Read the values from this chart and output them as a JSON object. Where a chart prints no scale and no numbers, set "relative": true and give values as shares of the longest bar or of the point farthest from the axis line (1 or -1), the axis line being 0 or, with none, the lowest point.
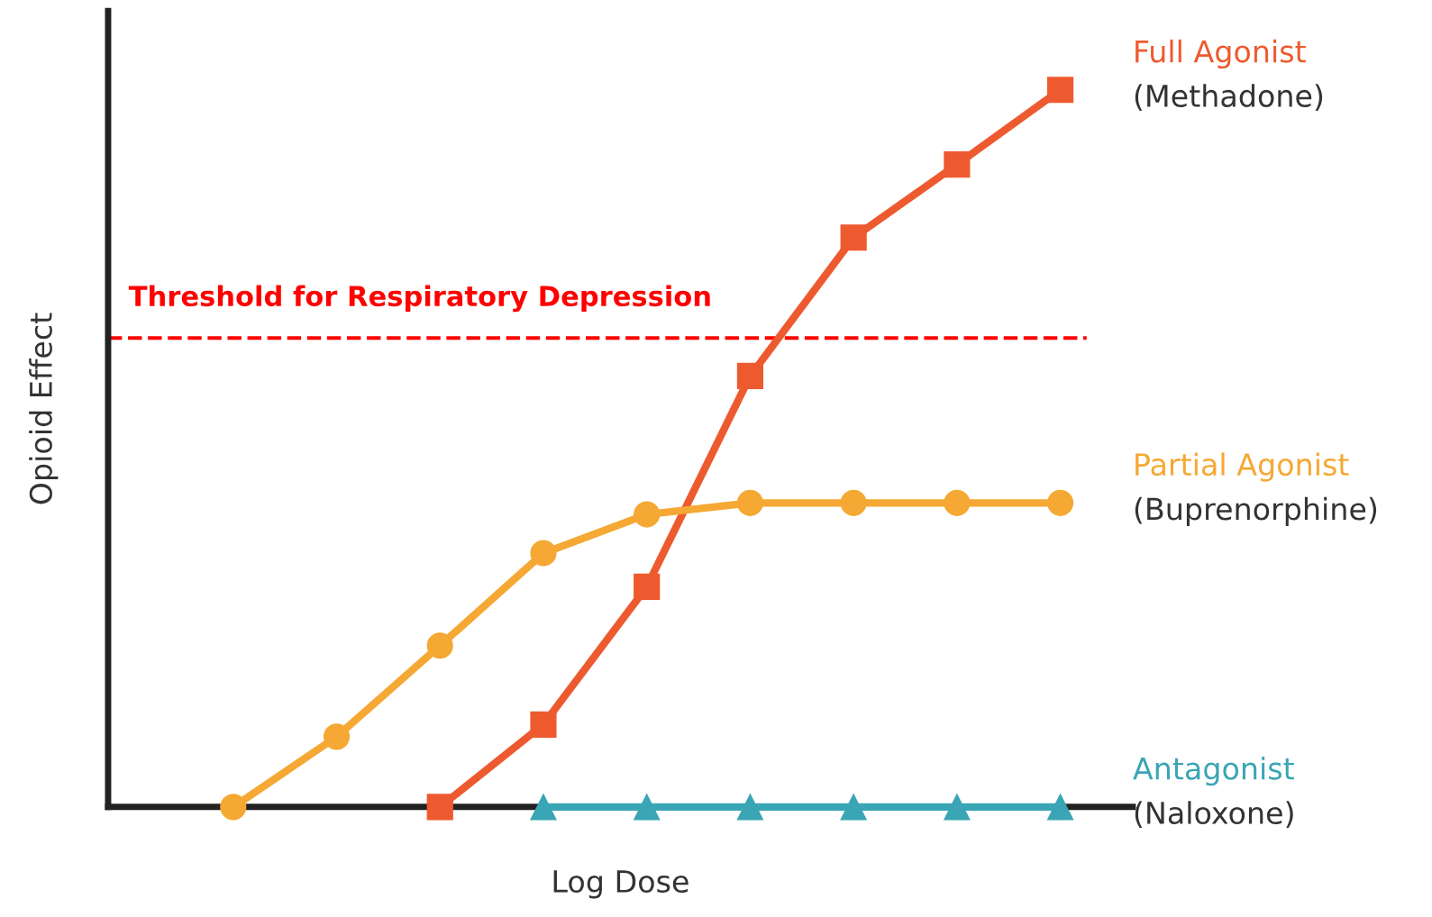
{
  "chart_data": {
    "type": "line",
    "relative": true,
    "xlabel": "Log Dose",
    "ylabel": "Opioid Effect",
    "legend": false,
    "categories": [
      null,
      null,
      null,
      null,
      null,
      null,
      null,
      null,
      null
    ],
    "series": [
      {
        "name": "Full Agonist",
        "color": "#ee5a2f",
        "marker": "square",
        "values": [
          null,
          null,
          0,
          0.115,
          0.307,
          0.601,
          0.794,
          0.896,
          1
        ]
      },
      {
        "name": "Partial Agonist",
        "color": "#f5a833",
        "marker": "circle",
        "values": [
          0,
          0.098,
          0.225,
          0.354,
          0.408,
          0.424,
          0.424,
          0.424,
          0.424
        ]
      },
      {
        "name": "Antagonist",
        "color": "#3aa5b5",
        "marker": "triangle",
        "values": [
          null,
          null,
          null,
          0,
          0,
          0,
          0,
          0,
          0
        ]
      }
    ],
    "annotations": [
      "(Methadone)",
      "(Buprenorphine)",
      "(Naloxone)"
    ],
    "ref_lines": [
      {
        "axis": "y",
        "value": 0.654,
        "label": "Threshold for Respiratory Depression",
        "color": "#ff0000",
        "line_style": "dashed"
      }
    ]
  }
}
